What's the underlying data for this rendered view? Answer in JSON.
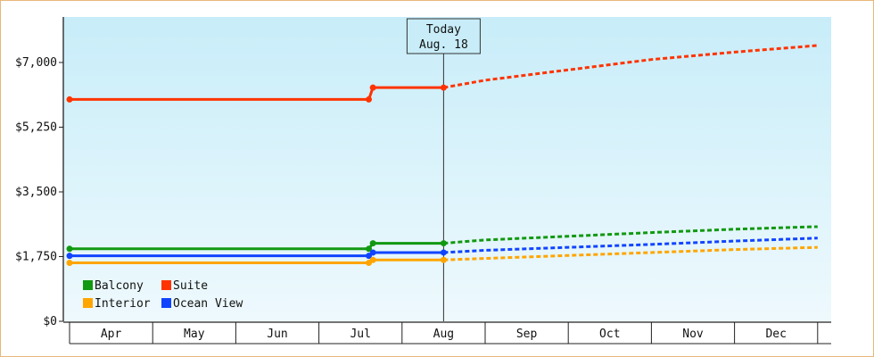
{
  "chart_data": {
    "type": "line",
    "title": "",
    "xlabel": "",
    "ylabel": "",
    "ylim": [
      0,
      8500
    ],
    "y_ticks": [
      {
        "value": 0,
        "label": "$0"
      },
      {
        "value": 1750,
        "label": "$1,750"
      },
      {
        "value": 3500,
        "label": "$3,500"
      },
      {
        "value": 5250,
        "label": "$5,250"
      },
      {
        "value": 7000,
        "label": "$7,000"
      }
    ],
    "x_categories": [
      "Apr",
      "May",
      "Jun",
      "Jul",
      "Aug",
      "Sep",
      "Oct",
      "Nov",
      "Dec"
    ],
    "today": {
      "line1": "Today",
      "line2": "Aug. 18",
      "x": 4.5
    },
    "legend_position": "bottom-left",
    "series": [
      {
        "name": "Suite",
        "color": "#ff3300",
        "actual": [
          [
            0,
            6000
          ],
          [
            3.6,
            6000
          ],
          [
            3.65,
            6320
          ],
          [
            4.5,
            6320
          ]
        ],
        "projected": [
          [
            4.5,
            6320
          ],
          [
            5,
            6520
          ],
          [
            6,
            6800
          ],
          [
            7,
            7080
          ],
          [
            8,
            7280
          ],
          [
            9,
            7460
          ]
        ]
      },
      {
        "name": "Balcony",
        "color": "#119911",
        "actual": [
          [
            0,
            1960
          ],
          [
            3.6,
            1960
          ],
          [
            3.65,
            2110
          ],
          [
            4.5,
            2110
          ]
        ],
        "projected": [
          [
            4.5,
            2110
          ],
          [
            5,
            2200
          ],
          [
            6,
            2300
          ],
          [
            7,
            2400
          ],
          [
            8,
            2490
          ],
          [
            9,
            2560
          ]
        ]
      },
      {
        "name": "Ocean View",
        "color": "#1144ff",
        "actual": [
          [
            0,
            1770
          ],
          [
            3.6,
            1770
          ],
          [
            3.65,
            1860
          ],
          [
            4.5,
            1860
          ]
        ],
        "projected": [
          [
            4.5,
            1860
          ],
          [
            5,
            1920
          ],
          [
            6,
            2000
          ],
          [
            7,
            2080
          ],
          [
            8,
            2170
          ],
          [
            9,
            2250
          ]
        ]
      },
      {
        "name": "Interior",
        "color": "#ffa500",
        "actual": [
          [
            0,
            1580
          ],
          [
            3.6,
            1580
          ],
          [
            3.65,
            1660
          ],
          [
            4.5,
            1660
          ]
        ],
        "projected": [
          [
            4.5,
            1660
          ],
          [
            5,
            1700
          ],
          [
            6,
            1780
          ],
          [
            7,
            1860
          ],
          [
            8,
            1940
          ],
          [
            9,
            2000
          ]
        ]
      }
    ],
    "legend": [
      {
        "name": "Balcony",
        "color": "#119911"
      },
      {
        "name": "Suite",
        "color": "#ff3300"
      },
      {
        "name": "Interior",
        "color": "#ffa500"
      },
      {
        "name": "Ocean View",
        "color": "#1144ff"
      }
    ]
  }
}
